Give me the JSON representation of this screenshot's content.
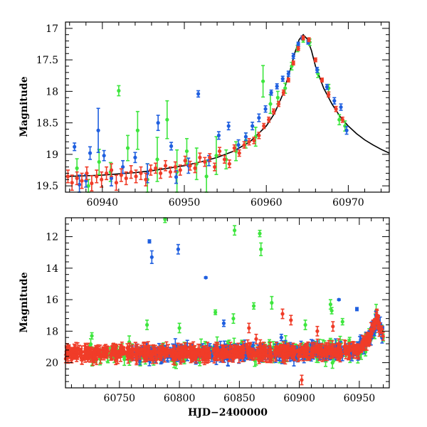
{
  "colors": {
    "blue": "#1f5fe0",
    "green": "#3ee63e",
    "red": "#f03c28",
    "curve": "#000000"
  },
  "chart_data": [
    {
      "type": "scatter",
      "title": "",
      "xlabel": "",
      "ylabel": "Magnitude",
      "xlim": [
        60935.5,
        60975
      ],
      "ylim": [
        19.6,
        16.9
      ],
      "y_inverted": true,
      "xticks": [
        60940,
        60950,
        60960,
        60970
      ],
      "xtick_labels": [
        "60940",
        "60950",
        "60960",
        "60970"
      ],
      "yticks": [
        17,
        17.5,
        18,
        18.5,
        19,
        19.5
      ],
      "ytick_labels": [
        "17",
        "17.5",
        "18",
        "18.5",
        "19",
        "19.5"
      ],
      "model_curve": {
        "name": "model",
        "x": [
          60935.5,
          60938,
          60940,
          60942,
          60944,
          60946,
          60948,
          60950,
          60952,
          60954,
          60956,
          60958,
          60960,
          60961,
          60962,
          60963,
          60963.5,
          60964,
          60964.5,
          60965,
          60965.5,
          60966,
          60967,
          60968,
          60969,
          60970,
          60971,
          60972,
          60973,
          60974,
          60975
        ],
        "y": [
          19.35,
          19.34,
          19.33,
          19.31,
          19.29,
          19.26,
          19.22,
          19.18,
          19.12,
          19.05,
          18.95,
          18.8,
          18.55,
          18.35,
          18.05,
          17.62,
          17.38,
          17.18,
          17.1,
          17.17,
          17.35,
          17.6,
          17.95,
          18.2,
          18.4,
          18.55,
          18.67,
          18.77,
          18.85,
          18.92,
          18.98
        ]
      },
      "series": [
        {
          "name": "blue",
          "x": [
            60936.6,
            60937.2,
            60938.0,
            60938.5,
            60939.5,
            60940.2,
            60941.1,
            60942.5,
            60944.0,
            60945.5,
            60946.8,
            60948.4,
            60949.0,
            60950.5,
            60951.7,
            60953.0,
            60954.2,
            60955.4,
            60956.6,
            60957.5,
            60958.3,
            60959.1,
            60959.9,
            60960.6,
            60961.3,
            60962.0,
            60962.7,
            60963.3,
            60963.9,
            60964.4,
            60965.1,
            60966.2,
            60967.4,
            60968.3,
            60969.1,
            60969.8
          ],
          "y": [
            18.88,
            19.48,
            19.42,
            18.98,
            18.62,
            19.02,
            19.38,
            19.2,
            19.05,
            19.3,
            18.5,
            18.87,
            19.36,
            19.18,
            18.04,
            19.1,
            18.7,
            18.55,
            18.85,
            18.72,
            18.55,
            18.42,
            18.28,
            18.02,
            17.92,
            17.8,
            17.72,
            17.44,
            17.25,
            17.15,
            17.22,
            17.66,
            17.93,
            18.15,
            18.25,
            18.62
          ],
          "err": [
            0.06,
            0.15,
            0.1,
            0.1,
            0.35,
            0.08,
            0.12,
            0.1,
            0.08,
            0.15,
            0.12,
            0.06,
            0.1,
            0.12,
            0.05,
            0.08,
            0.06,
            0.06,
            0.08,
            0.06,
            0.06,
            0.06,
            0.05,
            0.04,
            0.04,
            0.04,
            0.04,
            0.04,
            0.03,
            0.03,
            0.03,
            0.04,
            0.04,
            0.05,
            0.05,
            0.06
          ]
        },
        {
          "name": "green",
          "x": [
            60936.9,
            60938.3,
            60939.6,
            60941.0,
            60942.0,
            60943.1,
            60944.3,
            60945.5,
            60946.7,
            60947.9,
            60949.1,
            60950.3,
            60951.5,
            60952.7,
            60953.9,
            60955.1,
            60956.3,
            60957.5,
            60958.7,
            60959.6,
            60960.5,
            60961.4,
            60962.3,
            60963.1,
            60963.8,
            60964.5,
            60965.3,
            60966.3,
            60967.6,
            60968.9,
            60969.6
          ],
          "y": [
            19.22,
            19.5,
            19.12,
            19.28,
            17.99,
            18.9,
            18.62,
            19.4,
            19.08,
            18.45,
            19.28,
            18.95,
            19.15,
            19.35,
            19.02,
            19.08,
            18.95,
            18.78,
            18.72,
            17.84,
            18.2,
            18.1,
            17.95,
            17.6,
            17.32,
            17.18,
            17.22,
            17.72,
            17.95,
            18.45,
            18.55
          ],
          "err": [
            0.15,
            0.1,
            0.2,
            0.15,
            0.08,
            0.2,
            0.3,
            0.25,
            0.35,
            0.3,
            0.35,
            0.2,
            0.25,
            0.25,
            0.3,
            0.15,
            0.15,
            0.12,
            0.15,
            0.25,
            0.15,
            0.1,
            0.08,
            0.06,
            0.05,
            0.04,
            0.05,
            0.06,
            0.06,
            0.08,
            0.08
          ]
        },
        {
          "name": "red",
          "x": [
            60935.8,
            60936.3,
            60936.9,
            60937.5,
            60938.1,
            60938.7,
            60939.3,
            60939.9,
            60940.5,
            60941.1,
            60941.7,
            60942.3,
            60942.9,
            60943.5,
            60944.1,
            60944.7,
            60945.3,
            60945.9,
            60946.5,
            60947.1,
            60947.7,
            60948.3,
            60948.9,
            60949.5,
            60950.1,
            60950.7,
            60951.3,
            60951.9,
            60952.5,
            60953.1,
            60953.7,
            60954.3,
            60954.9,
            60955.5,
            60956.1,
            60956.7,
            60957.3,
            60957.9,
            60958.5,
            60959.1,
            60959.7,
            60960.3,
            60960.9,
            60961.5,
            60962.1,
            60962.7,
            60963.3,
            60963.9,
            60964.5,
            60965.2,
            60966.0,
            60966.8,
            60967.6,
            60968.5,
            60969.3
          ],
          "y": [
            19.35,
            19.45,
            19.38,
            19.42,
            19.3,
            19.46,
            19.35,
            19.4,
            19.3,
            19.25,
            19.45,
            19.33,
            19.38,
            19.28,
            19.35,
            19.3,
            19.4,
            19.25,
            19.22,
            19.3,
            19.18,
            19.28,
            19.2,
            19.25,
            19.1,
            19.18,
            19.22,
            19.05,
            19.12,
            19.05,
            19.2,
            18.95,
            19.08,
            19.15,
            18.9,
            18.98,
            18.85,
            18.8,
            18.78,
            18.7,
            18.55,
            18.45,
            18.32,
            18.2,
            18.02,
            17.82,
            17.55,
            17.32,
            17.15,
            17.18,
            17.5,
            17.82,
            18.05,
            18.28,
            18.45
          ],
          "err": [
            0.1,
            0.12,
            0.1,
            0.12,
            0.1,
            0.12,
            0.1,
            0.12,
            0.1,
            0.1,
            0.12,
            0.1,
            0.1,
            0.1,
            0.1,
            0.1,
            0.1,
            0.08,
            0.08,
            0.08,
            0.08,
            0.08,
            0.08,
            0.08,
            0.07,
            0.07,
            0.07,
            0.07,
            0.07,
            0.06,
            0.06,
            0.06,
            0.06,
            0.06,
            0.05,
            0.05,
            0.05,
            0.05,
            0.05,
            0.05,
            0.04,
            0.04,
            0.04,
            0.04,
            0.04,
            0.03,
            0.03,
            0.03,
            0.03,
            0.03,
            0.03,
            0.03,
            0.04,
            0.04,
            0.04
          ]
        }
      ]
    },
    {
      "type": "scatter",
      "title": "",
      "xlabel": "HJD−2400000",
      "ylabel": "Magnitude",
      "xlim": [
        60705,
        60975
      ],
      "ylim": [
        21.6,
        10.8
      ],
      "y_inverted": true,
      "xticks": [
        60750,
        60800,
        60850,
        60900,
        60950
      ],
      "xtick_labels": [
        "60750",
        "60800",
        "60850",
        "60900",
        "60950"
      ],
      "yticks": [
        12,
        14,
        16,
        18,
        20
      ],
      "ytick_labels": [
        "12",
        "14",
        "16",
        "18",
        "20"
      ],
      "baseline": {
        "x": [
          60705,
          60940,
          60950,
          60955,
          60960,
          60964.5,
          60968,
          60975
        ],
        "y": [
          19.45,
          19.3,
          19.1,
          18.8,
          18.2,
          17.1,
          17.9,
          18.9
        ]
      },
      "series": [
        {
          "name": "blue",
          "outliers_x": [
            60775,
            60777,
            60799,
            60822,
            60933,
            60948,
            60837,
            60885
          ],
          "outliers_y": [
            12.3,
            13.3,
            12.8,
            14.6,
            16.0,
            16.6,
            17.5,
            18.4
          ],
          "outliers_err": [
            0.1,
            0.4,
            0.3,
            0.05,
            0.05,
            0.1,
            0.2,
            0.2
          ]
        },
        {
          "name": "green",
          "outliers_x": [
            60788,
            60846,
            60867,
            60868,
            60877,
            60830,
            60862,
            60926,
            60927,
            60727,
            60773,
            60800,
            60845,
            60905,
            60936
          ],
          "outliers_y": [
            10.9,
            11.6,
            11.8,
            12.8,
            16.2,
            16.8,
            16.4,
            16.3,
            16.7,
            18.3,
            17.6,
            17.8,
            17.2,
            17.6,
            17.4
          ],
          "outliers_err": [
            0.2,
            0.3,
            0.2,
            0.4,
            0.4,
            0.15,
            0.2,
            0.3,
            0.2,
            0.2,
            0.3,
            0.3,
            0.3,
            0.3,
            0.2
          ]
        },
        {
          "name": "red",
          "outliers_x": [
            60886,
            60893,
            60902,
            60858,
            60864,
            60915,
            60928
          ],
          "outliers_y": [
            16.9,
            17.3,
            21.1,
            17.8,
            18.5,
            18.0,
            17.7
          ],
          "outliers_err": [
            0.3,
            0.3,
            0.3,
            0.3,
            0.3,
            0.3,
            0.3
          ]
        }
      ]
    }
  ]
}
